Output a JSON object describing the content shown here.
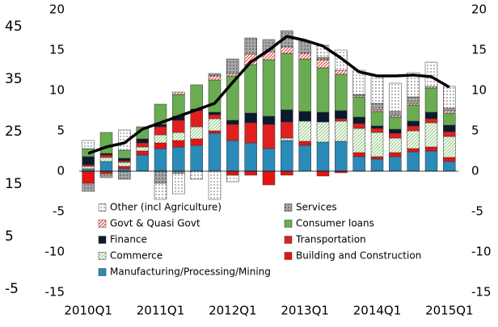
{
  "chart_data": {
    "type": "stacked_bar_line",
    "categories": [
      "2010Q1",
      null,
      null,
      null,
      "2011Q1",
      null,
      null,
      null,
      "2012Q1",
      null,
      null,
      null,
      "2013Q1",
      null,
      null,
      null,
      "2014Q1",
      null,
      null,
      null,
      "2015Q1"
    ],
    "series": [
      {
        "name": "Manufacturing/Processing/Mining",
        "color": "#2a8ab8",
        "pattern": "solid",
        "values": [
          0.3,
          1.2,
          0.3,
          2.0,
          2.8,
          3.0,
          3.2,
          4.7,
          3.8,
          3.5,
          2.8,
          3.8,
          3.2,
          3.6,
          3.7,
          1.8,
          1.5,
          1.8,
          2.4,
          2.5,
          1.2
        ]
      },
      {
        "name": "Building and Construction",
        "color": "#e8130f",
        "pattern": "solid",
        "values": [
          -1.5,
          -0.3,
          0.3,
          0.5,
          0.7,
          0.8,
          0.8,
          0.3,
          -0.5,
          -0.5,
          -1.7,
          -0.5,
          0.5,
          -0.6,
          -0.2,
          0.5,
          0.3,
          0.5,
          0.4,
          0.5,
          0.5
        ]
      },
      {
        "name": "Commerce",
        "color": "#8cc77a",
        "pattern": "diagonal",
        "values": [
          0.3,
          0.5,
          0.5,
          0.5,
          1.0,
          1.0,
          1.5,
          1.5,
          0,
          0,
          0,
          0.3,
          2.5,
          2.5,
          2.5,
          3.0,
          3.0,
          1.8,
          2.2,
          3.0,
          2.6
        ]
      },
      {
        "name": "Transportation",
        "color": "#e02020",
        "pattern": "solid",
        "values": [
          0.2,
          0.3,
          0.2,
          0.5,
          1.0,
          1.5,
          2.0,
          0.5,
          2.0,
          2.5,
          3.0,
          2.0,
          0,
          0,
          0.3,
          0.6,
          0.5,
          0.6,
          0.6,
          0.5,
          0.6
        ]
      },
      {
        "name": "Finance",
        "color": "#0b1a2e",
        "pattern": "solid",
        "values": [
          1.0,
          0.2,
          0.3,
          0.5,
          0.3,
          0.5,
          0.2,
          0.3,
          0.5,
          1.2,
          1.0,
          1.5,
          1.2,
          1.2,
          1.0,
          0.8,
          0.3,
          0.5,
          0.6,
          0.8,
          0.8
        ]
      },
      {
        "name": "Consumer loans",
        "color": "#6aac52",
        "pattern": "solid",
        "values": [
          1.0,
          2.6,
          1.0,
          1.5,
          2.5,
          2.7,
          3.0,
          4.0,
          5.5,
          6.0,
          7.0,
          7.0,
          6.5,
          5.5,
          4.5,
          2.5,
          1.8,
          1.5,
          2.0,
          3.0,
          1.5
        ]
      },
      {
        "name": "Govt & Quasi Govt",
        "color": "#e8302a",
        "pattern": "diagonal",
        "values": [
          0,
          0,
          0,
          0,
          0,
          0.3,
          0,
          0.5,
          0.3,
          1.3,
          1.0,
          0.8,
          0.7,
          1.0,
          0.5,
          0.2,
          0.2,
          0.2,
          0.2,
          0.2,
          0.3
        ]
      },
      {
        "name": "Services",
        "color": "#a6a6a6",
        "pattern": "dots",
        "values": [
          -1.0,
          -0.5,
          -1.0,
          0,
          -1.5,
          -0.3,
          0,
          0.3,
          1.8,
          2.0,
          1.5,
          2.0,
          1.5,
          0.3,
          0,
          0.1,
          0.8,
          0.5,
          0.8,
          0,
          0.3
        ]
      },
      {
        "name": "Other (incl Agriculture)",
        "color": "#ffffff",
        "pattern": "dots",
        "values": [
          1.0,
          0,
          2.5,
          0,
          -2.0,
          -2.5,
          -1.0,
          -3.5,
          -0.8,
          0,
          0,
          0,
          0,
          1.5,
          2.5,
          3.0,
          3.5,
          3.5,
          3.0,
          3.0,
          2.7
        ]
      }
    ],
    "total": {
      "color": "#000000",
      "values": [
        2.2,
        3.0,
        3.5,
        5.2,
        6.0,
        6.8,
        7.6,
        8.4,
        11.0,
        13.5,
        15.0,
        16.7,
        16.2,
        15.5,
        14.0,
        12.3,
        11.8,
        11.8,
        11.9,
        11.7,
        10.4
      ]
    },
    "ylim": [
      -15,
      20
    ],
    "yticks": [
      -15,
      -10,
      -5,
      0,
      5,
      10,
      15,
      20
    ],
    "y2lim": [
      -15,
      20
    ],
    "y2ticks": [
      -15,
      -10,
      -5,
      0,
      5,
      10,
      15,
      20
    ],
    "y3lim": [
      -5.6,
      48.2
    ],
    "y3ticks": [
      -5,
      5,
      15,
      25,
      35,
      45
    ],
    "grid": false
  }
}
